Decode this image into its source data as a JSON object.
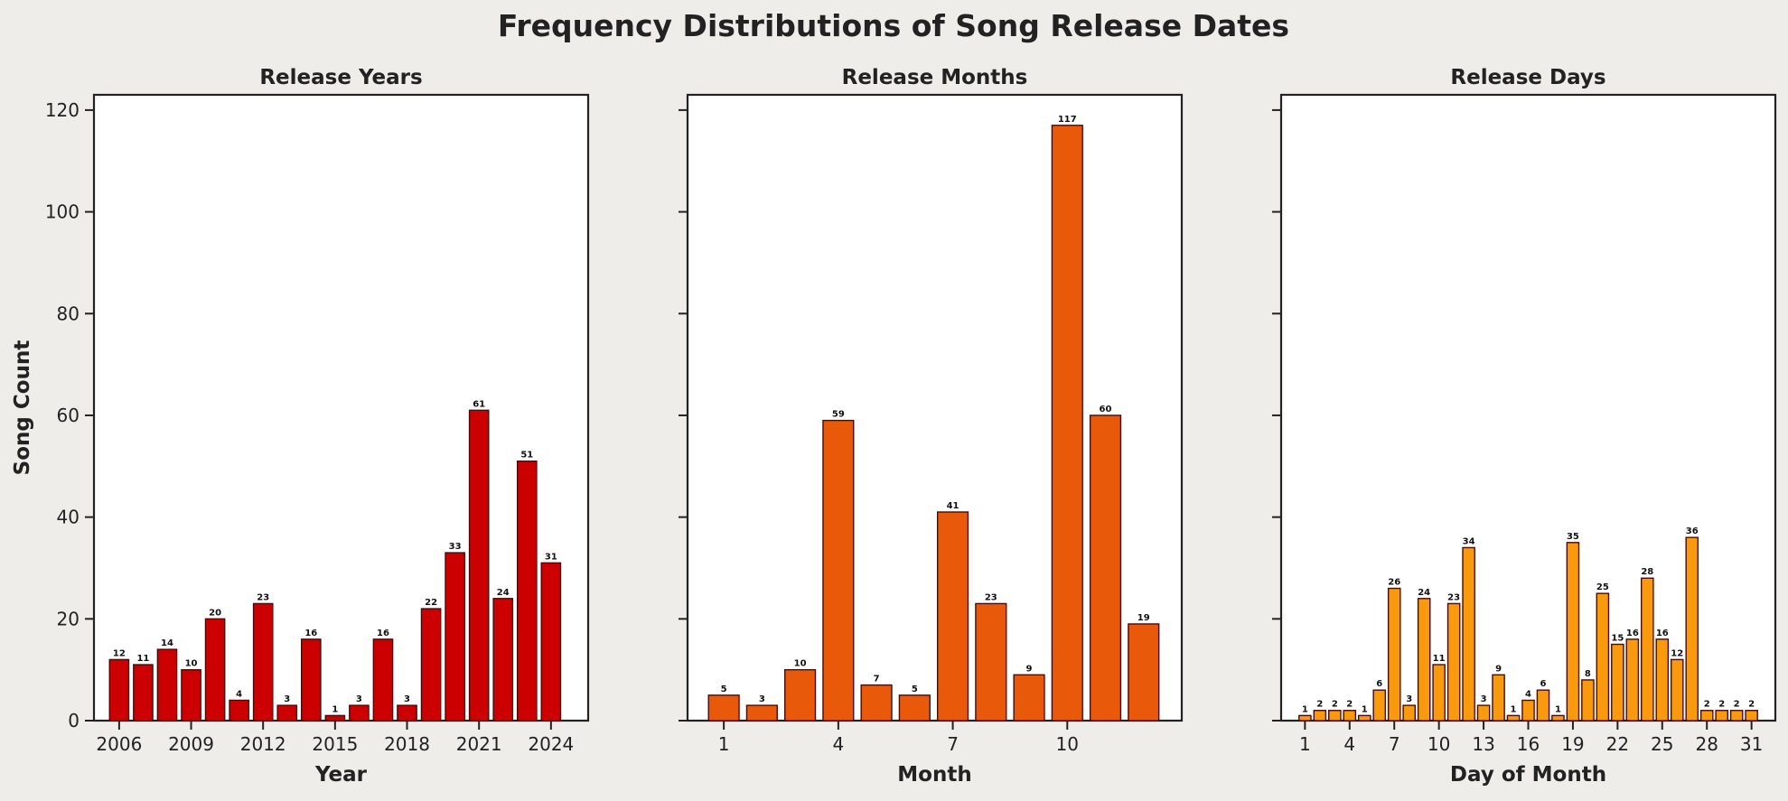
{
  "figure": {
    "title": "Frequency Distributions of Song Release Dates",
    "background": "#eeedea"
  },
  "chart_data": [
    {
      "type": "bar",
      "title": "Release Years",
      "xlabel": "Year",
      "ylabel": "Song Count",
      "ylim": [
        0,
        123
      ],
      "yticks": [
        0,
        20,
        40,
        60,
        80,
        100,
        120
      ],
      "xticks": [
        2006,
        2009,
        2012,
        2015,
        2018,
        2021,
        2024
      ],
      "xlim": [
        2004.95,
        2025.55
      ],
      "x": [
        2006,
        2007,
        2008,
        2009,
        2010,
        2011,
        2012,
        2013,
        2014,
        2015,
        2016,
        2017,
        2018,
        2019,
        2020,
        2021,
        2022,
        2023,
        2024
      ],
      "values": [
        12,
        11,
        14,
        10,
        20,
        4,
        23,
        3,
        16,
        1,
        3,
        16,
        3,
        22,
        33,
        61,
        24,
        51,
        31
      ],
      "color": "#cc0000",
      "grid": false,
      "show_yticklabels": true
    },
    {
      "type": "bar",
      "title": "Release Months",
      "xlabel": "Month",
      "ylabel": "",
      "ylim": [
        0,
        123
      ],
      "yticks": [
        0,
        20,
        40,
        60,
        80,
        100,
        120
      ],
      "xticks": [
        1,
        4,
        7,
        10
      ],
      "xlim": [
        0.05,
        13.0
      ],
      "x": [
        1,
        2,
        3,
        4,
        5,
        6,
        7,
        8,
        9,
        10,
        11,
        12
      ],
      "values": [
        5,
        3,
        10,
        59,
        7,
        5,
        41,
        23,
        9,
        117,
        60,
        19
      ],
      "color": "#e85a0a",
      "grid": false,
      "show_yticklabels": false
    },
    {
      "type": "bar",
      "title": "Release Days",
      "xlabel": "Day of Month",
      "ylabel": "",
      "ylim": [
        0,
        123
      ],
      "yticks": [
        0,
        20,
        40,
        60,
        80,
        100,
        120
      ],
      "xticks": [
        1,
        4,
        7,
        10,
        13,
        16,
        19,
        22,
        25,
        28,
        31
      ],
      "xlim": [
        -0.6,
        32.6
      ],
      "x": [
        1,
        2,
        3,
        4,
        5,
        6,
        7,
        8,
        9,
        10,
        11,
        12,
        13,
        14,
        15,
        16,
        17,
        18,
        19,
        20,
        21,
        22,
        23,
        24,
        25,
        26,
        27,
        28,
        29,
        30,
        31
      ],
      "values": [
        1,
        2,
        2,
        2,
        1,
        6,
        26,
        3,
        24,
        11,
        23,
        34,
        3,
        9,
        1,
        4,
        6,
        1,
        35,
        8,
        25,
        15,
        16,
        28,
        16,
        12,
        36,
        2,
        2,
        2,
        2
      ],
      "color": "#f99a0e",
      "grid": false,
      "show_yticklabels": false
    }
  ]
}
